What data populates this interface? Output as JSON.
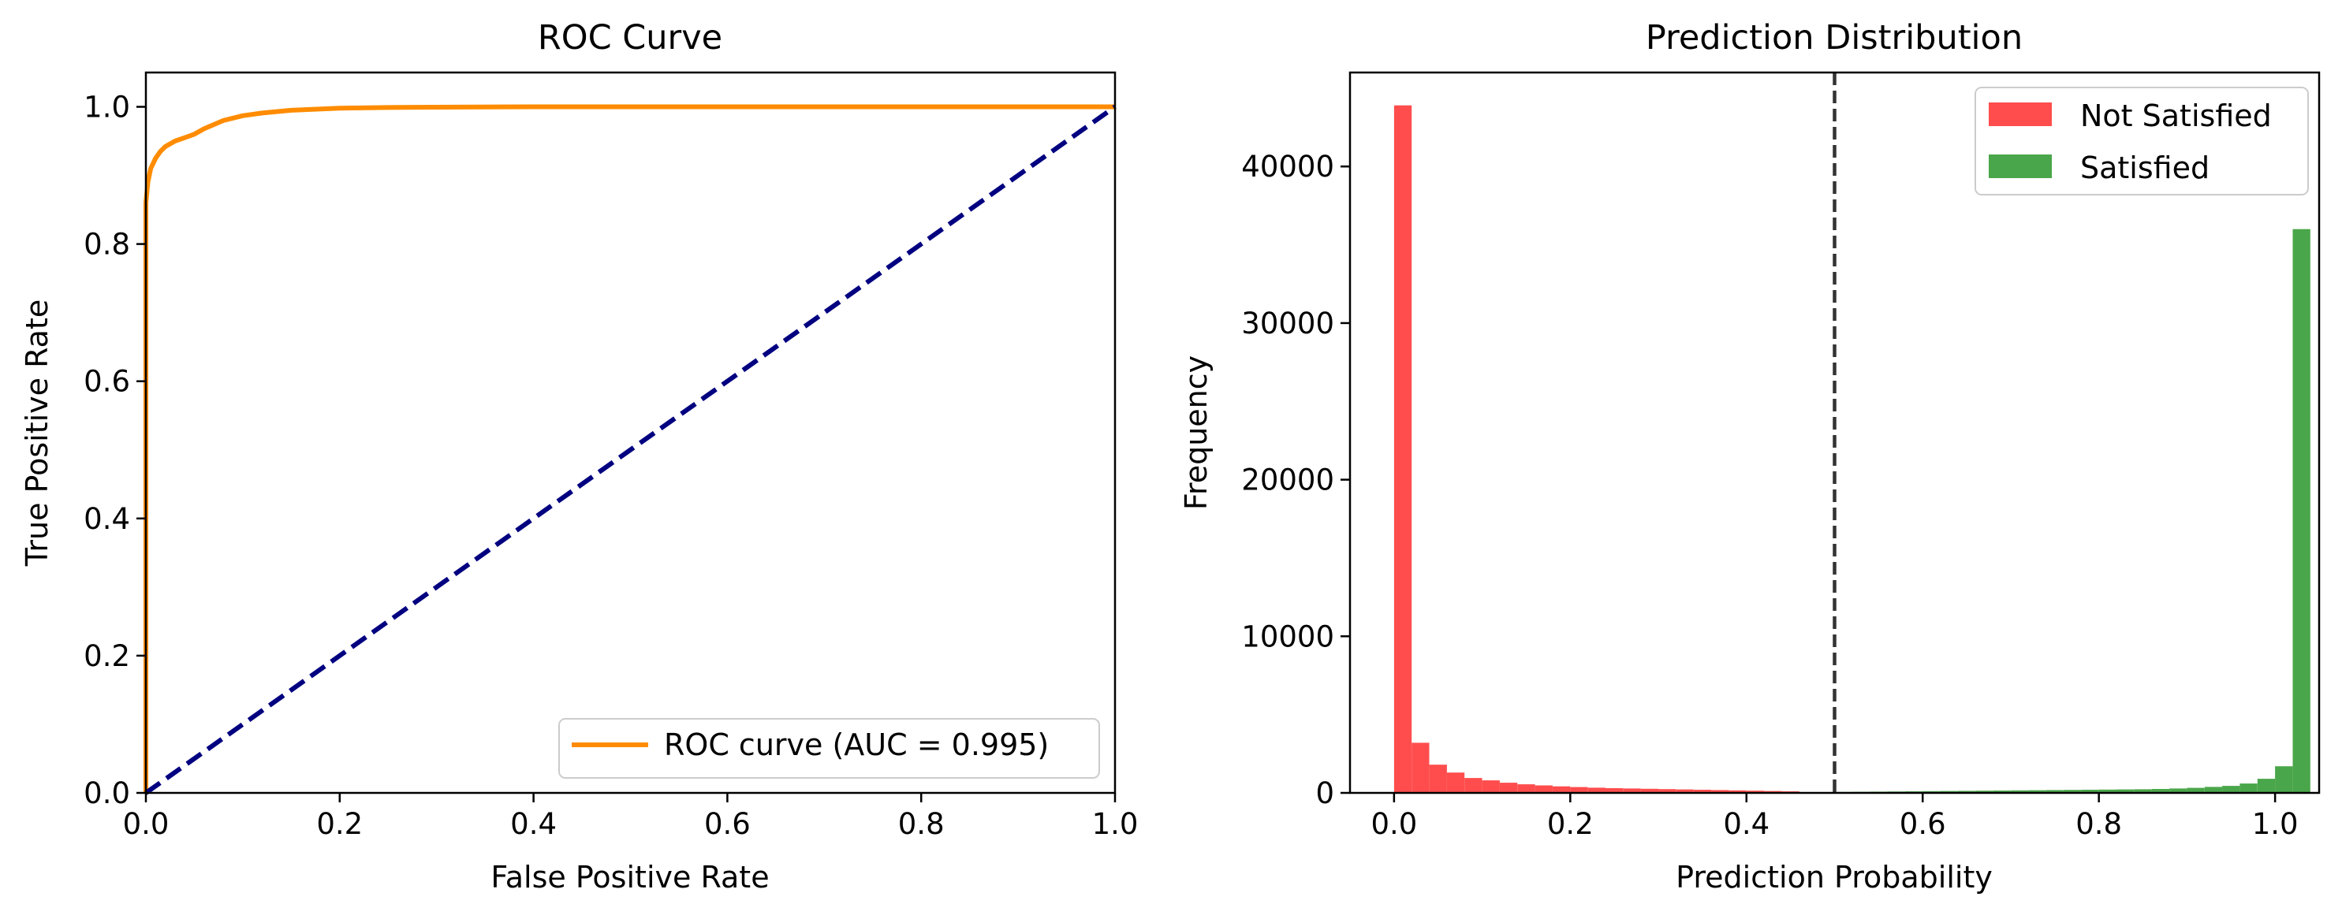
{
  "chart_data": [
    {
      "type": "line",
      "title": "ROC Curve",
      "xlabel": "False Positive Rate",
      "ylabel": "True Positive Rate",
      "xlim": [
        0.0,
        1.0
      ],
      "ylim": [
        0.0,
        1.05
      ],
      "xticks": [
        "0.0",
        "0.2",
        "0.4",
        "0.6",
        "0.8",
        "1.0"
      ],
      "yticks": [
        "0.0",
        "0.2",
        "0.4",
        "0.6",
        "0.8",
        "1.0"
      ],
      "grid": false,
      "legend_position": "lower right",
      "series": [
        {
          "name": "ROC curve (AUC = 0.995)",
          "color": "#ff8c00",
          "style": "solid",
          "x": [
            0.0,
            0.0,
            0.002,
            0.005,
            0.01,
            0.015,
            0.02,
            0.03,
            0.04,
            0.05,
            0.06,
            0.08,
            0.1,
            0.12,
            0.15,
            0.2,
            0.25,
            0.3,
            0.4,
            0.6,
            0.8,
            1.0
          ],
          "y": [
            0.0,
            0.86,
            0.89,
            0.91,
            0.925,
            0.935,
            0.942,
            0.95,
            0.955,
            0.96,
            0.968,
            0.98,
            0.987,
            0.991,
            0.995,
            0.998,
            0.999,
            0.9995,
            1.0,
            1.0,
            1.0,
            1.0
          ]
        },
        {
          "color": "#000080",
          "style": "dashed",
          "x": [
            0.0,
            1.0
          ],
          "y": [
            0.0,
            1.0
          ]
        }
      ]
    },
    {
      "type": "bar",
      "subtype": "histogram",
      "title": "Prediction Distribution",
      "xlabel": "Prediction Probability",
      "ylabel": "Frequency",
      "xlim": [
        -0.05,
        1.05
      ],
      "ylim": [
        0,
        46000
      ],
      "xticks": [
        "0.0",
        "0.2",
        "0.4",
        "0.6",
        "0.8",
        "1.0"
      ],
      "yticks": [
        "0",
        "10000",
        "20000",
        "30000",
        "40000"
      ],
      "grid": false,
      "legend_position": "upper right",
      "threshold_x": 0.5,
      "threshold_color": "#333333",
      "bin_width": 0.02,
      "series": [
        {
          "name": "Not Satisfied",
          "color": "#ff4d4d",
          "bin_start": 0.0,
          "values": [
            43900,
            3200,
            1800,
            1300,
            950,
            800,
            650,
            550,
            480,
            420,
            370,
            330,
            300,
            280,
            260,
            240,
            220,
            200,
            180,
            160,
            140,
            120,
            100
          ]
        },
        {
          "name": "Satisfied",
          "color": "#4aa64a",
          "bin_start": 0.5,
          "values": [
            60,
            70,
            80,
            90,
            100,
            110,
            120,
            130,
            140,
            150,
            160,
            170,
            180,
            190,
            200,
            210,
            220,
            230,
            250,
            280,
            320,
            380,
            450,
            600,
            900,
            1700,
            36000
          ]
        }
      ]
    }
  ]
}
